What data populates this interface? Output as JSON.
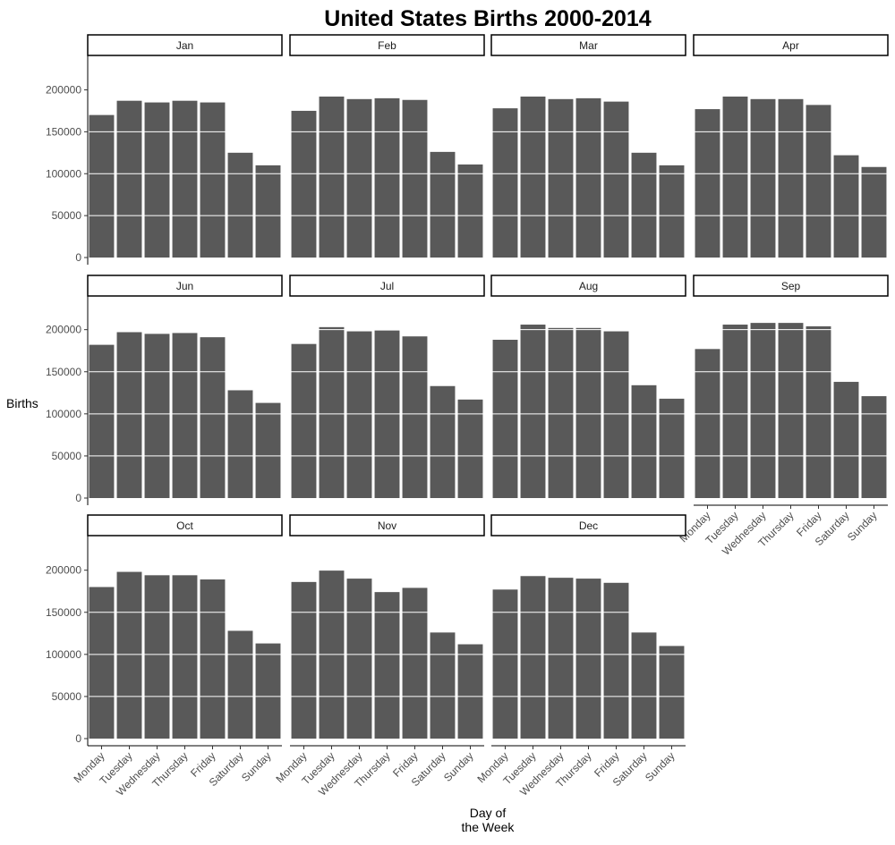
{
  "chart_data": {
    "type": "bar",
    "title": "United States Births 2000-2014",
    "xlabel": "Day of\nthe Week",
    "ylabel": "Births",
    "categories": [
      "Monday",
      "Tuesday",
      "Wednesday",
      "Thursday",
      "Friday",
      "Saturday",
      "Sunday"
    ],
    "ylim": [
      0,
      240000
    ],
    "yticks": [
      0,
      50000,
      100000,
      150000,
      200000
    ],
    "ytick_labels": [
      "0",
      "50000",
      "100000",
      "150000",
      "200000"
    ],
    "grid": "horizontal white lines over bars",
    "bar_color": "#595959",
    "panels": [
      {
        "month": "Jan",
        "values": [
          170000,
          187000,
          185000,
          187000,
          185000,
          125000,
          110000
        ]
      },
      {
        "month": "Feb",
        "values": [
          175000,
          192000,
          189000,
          190000,
          188000,
          126000,
          111000
        ]
      },
      {
        "month": "Mar",
        "values": [
          178000,
          192000,
          189000,
          190000,
          186000,
          125000,
          110000
        ]
      },
      {
        "month": "Apr",
        "values": [
          177000,
          192000,
          189000,
          189000,
          182000,
          122000,
          108000
        ]
      },
      {
        "month": "Jun",
        "values": [
          182000,
          197000,
          195000,
          196000,
          191000,
          128000,
          113000
        ]
      },
      {
        "month": "Jul",
        "values": [
          183000,
          203000,
          198000,
          199000,
          192000,
          133000,
          117000
        ]
      },
      {
        "month": "Aug",
        "values": [
          188000,
          206000,
          202000,
          202000,
          198000,
          134000,
          118000
        ]
      },
      {
        "month": "Sep",
        "values": [
          177000,
          206000,
          208000,
          208000,
          204000,
          138000,
          121000
        ]
      },
      {
        "month": "Oct",
        "values": [
          180000,
          198000,
          194000,
          194000,
          189000,
          128000,
          113000
        ]
      },
      {
        "month": "Nov",
        "values": [
          186000,
          200000,
          190000,
          174000,
          179000,
          126000,
          112000
        ]
      },
      {
        "month": "Dec",
        "values": [
          177000,
          193000,
          191000,
          190000,
          185000,
          126000,
          110000
        ]
      }
    ]
  }
}
